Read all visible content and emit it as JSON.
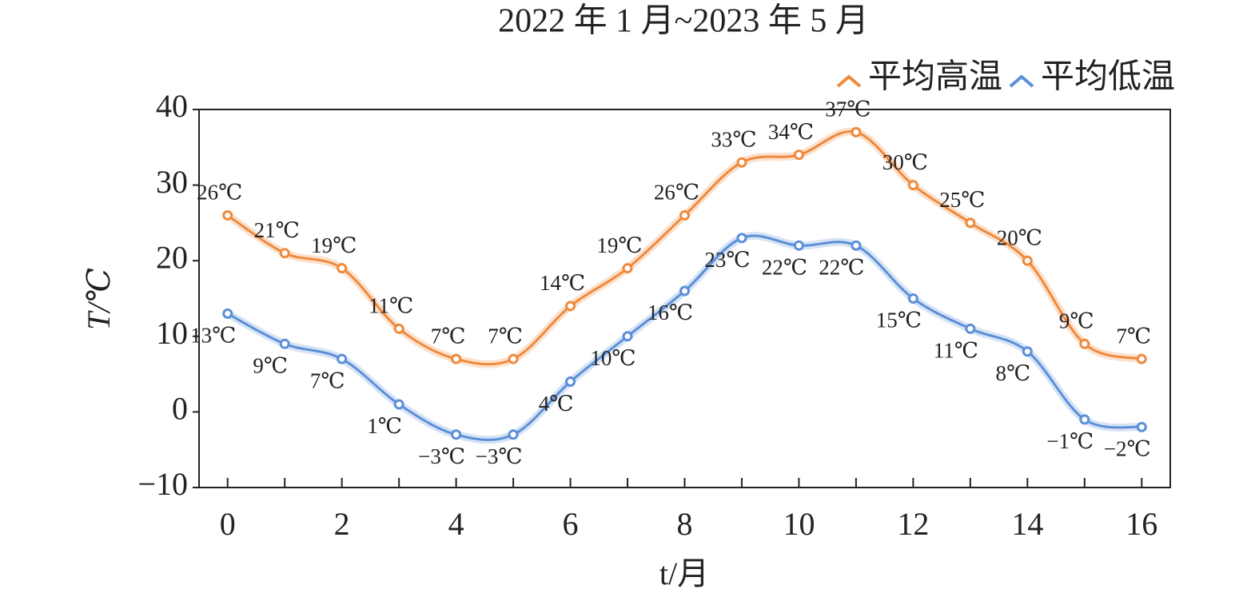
{
  "chart_data": {
    "type": "line",
    "title": "2022 年 1 月~2023 年 5 月",
    "x_label": "t/月",
    "y_label": "T/℃",
    "x": [
      0,
      1,
      2,
      3,
      4,
      5,
      6,
      7,
      8,
      9,
      10,
      11,
      12,
      13,
      14,
      15,
      16
    ],
    "series": [
      {
        "name": "平均高温",
        "color": "#f0893b",
        "values": [
          26,
          21,
          19,
          11,
          7,
          7,
          14,
          19,
          26,
          33,
          34,
          37,
          30,
          25,
          20,
          9,
          7
        ],
        "value_labels": [
          "26℃",
          "21℃",
          "19℃",
          "11℃",
          "7℃",
          "7℃",
          "14℃",
          "19℃",
          "26℃",
          "33℃",
          "34℃",
          "37℃",
          "30℃",
          "25℃",
          "20℃",
          "9℃",
          "7℃"
        ]
      },
      {
        "name": "平均低温",
        "color": "#5b8fd8",
        "values": [
          13,
          9,
          7,
          1,
          -3,
          -3,
          4,
          10,
          16,
          23,
          22,
          22,
          15,
          11,
          8,
          -1,
          -2
        ],
        "value_labels": [
          "13℃",
          "9℃",
          "7℃",
          "1℃",
          "−3℃",
          "−3℃",
          "4℃",
          "10℃",
          "16℃",
          "23℃",
          "22℃",
          "22℃",
          "15℃",
          "11℃",
          "8℃",
          "−1℃",
          "−2℃"
        ]
      }
    ],
    "xlim": [
      -0.5,
      16.5
    ],
    "xticks": [
      0,
      2,
      4,
      6,
      8,
      10,
      12,
      14,
      16
    ],
    "ylim": [
      -10,
      40
    ],
    "yticks": [
      {
        "value": -10,
        "label": "−10"
      },
      0,
      10,
      20,
      30,
      40
    ],
    "legend": "top-right"
  }
}
